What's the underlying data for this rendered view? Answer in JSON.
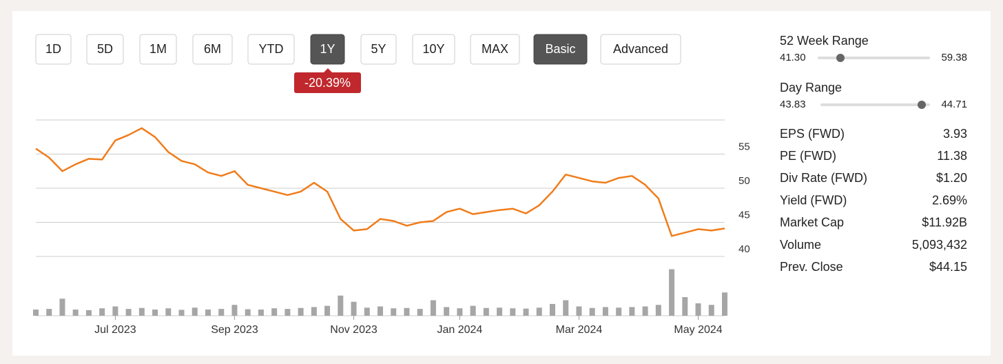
{
  "range_buttons": [
    {
      "label": "1D"
    },
    {
      "label": "5D"
    },
    {
      "label": "1M"
    },
    {
      "label": "6M"
    },
    {
      "label": "YTD"
    },
    {
      "label": "1Y",
      "active": true
    },
    {
      "label": "5Y"
    },
    {
      "label": "10Y"
    },
    {
      "label": "MAX"
    },
    {
      "label": "Basic",
      "active": true
    },
    {
      "label": "Advanced"
    }
  ],
  "change_badge": "-20.39%",
  "chart_data": {
    "type": "line",
    "color": "#f07c1a",
    "categories": [
      null,
      null,
      null,
      null,
      null,
      null,
      "Jul 2023",
      null,
      null,
      null,
      null,
      null,
      null,
      null,
      null,
      "Sep 2023",
      null,
      null,
      null,
      null,
      null,
      null,
      null,
      null,
      "Nov 2023",
      null,
      null,
      null,
      null,
      null,
      null,
      null,
      "Jan 2024",
      null,
      null,
      null,
      null,
      null,
      null,
      null,
      null,
      "Mar 2024",
      null,
      null,
      null,
      null,
      null,
      null,
      null,
      null,
      "May 2024",
      null,
      null
    ],
    "values": [
      55.8,
      54.5,
      52.5,
      53.5,
      54.3,
      54.2,
      57.0,
      57.8,
      58.8,
      57.5,
      55.3,
      54.0,
      53.5,
      52.3,
      51.8,
      52.5,
      50.5,
      50.0,
      49.5,
      49.0,
      49.5,
      50.8,
      49.5,
      45.5,
      43.8,
      44.0,
      45.5,
      45.2,
      44.5,
      45.0,
      45.2,
      46.5,
      47.0,
      46.2,
      46.5,
      46.8,
      47.0,
      46.3,
      47.5,
      49.5,
      52.0,
      51.5,
      51.0,
      50.8,
      51.5,
      51.8,
      50.5,
      48.5,
      43.0,
      43.5,
      44.0,
      43.8,
      44.1
    ],
    "ylim": [
      40,
      60
    ],
    "yticks": [
      40,
      45,
      50,
      55
    ],
    "grid": true,
    "volume": [
      2.0,
      2.2,
      5.5,
      2.0,
      1.8,
      2.4,
      3.0,
      2.2,
      2.5,
      2.0,
      2.4,
      1.9,
      2.6,
      2.0,
      2.2,
      3.5,
      2.1,
      2.0,
      2.4,
      2.2,
      2.5,
      2.8,
      3.2,
      6.5,
      4.5,
      2.6,
      3.0,
      2.4,
      2.5,
      2.2,
      5.0,
      2.8,
      2.4,
      3.2,
      2.5,
      2.6,
      2.4,
      2.3,
      2.6,
      3.8,
      5.0,
      3.0,
      2.5,
      2.8,
      2.6,
      2.8,
      3.0,
      3.5,
      15.0,
      6.0,
      4.0,
      3.5,
      7.5
    ],
    "volume_color": "#a6a6a6"
  },
  "ranges": [
    {
      "label": "52 Week Range",
      "low": "41.30",
      "high": "59.38"
    },
    {
      "label": "Day Range",
      "low": "43.83",
      "high": "44.71"
    }
  ],
  "stats": [
    {
      "label": "EPS (FWD)",
      "value": "3.93"
    },
    {
      "label": "PE (FWD)",
      "value": "11.38"
    },
    {
      "label": "Div Rate (FWD)",
      "value": "$1.20"
    },
    {
      "label": "Yield (FWD)",
      "value": "2.69%"
    },
    {
      "label": "Market Cap",
      "value": "$11.92B"
    },
    {
      "label": "Volume",
      "value": "5,093,432"
    },
    {
      "label": "Prev. Close",
      "value": "$44.15"
    }
  ]
}
